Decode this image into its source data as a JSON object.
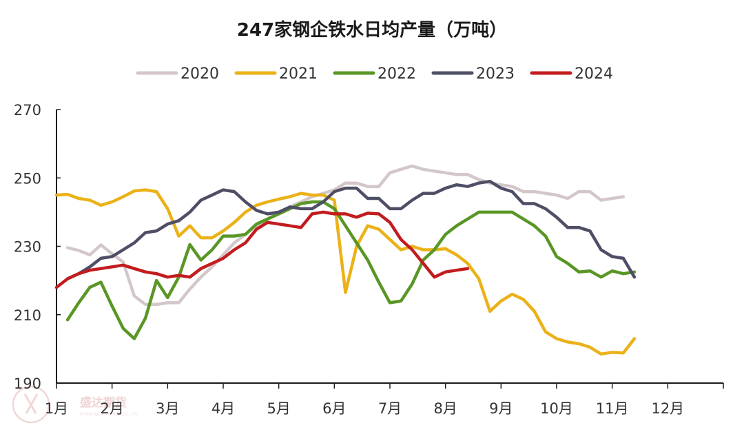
{
  "chart_data": {
    "type": "line",
    "title": "247家钢企铁水日均产量（万吨）",
    "xlabel": "",
    "ylabel": "",
    "ylim": [
      190,
      270
    ],
    "yticks": [
      190,
      210,
      230,
      250,
      270
    ],
    "x_range": [
      0,
      12
    ],
    "month_labels": [
      "1月",
      "2月",
      "3月",
      "4月",
      "5月",
      "6月",
      "7月",
      "8月",
      "9月",
      "10月",
      "11月",
      "12月"
    ],
    "legend_position": "top",
    "grid": false,
    "series": [
      {
        "name": "2020",
        "color": "#d3c7c9",
        "points": [
          [
            0.2,
            229.6
          ],
          [
            0.4,
            228.8
          ],
          [
            0.6,
            227.5
          ],
          [
            0.8,
            230.4
          ],
          [
            1.0,
            227.8
          ],
          [
            1.2,
            225.4
          ],
          [
            1.4,
            215.5
          ],
          [
            1.6,
            213.0
          ],
          [
            1.8,
            213.0
          ],
          [
            2.0,
            213.5
          ],
          [
            2.2,
            213.5
          ],
          [
            2.4,
            217.5
          ],
          [
            2.6,
            221.0
          ],
          [
            2.8,
            224.0
          ],
          [
            3.0,
            227.5
          ],
          [
            3.2,
            231.0
          ],
          [
            3.4,
            233.5
          ],
          [
            3.6,
            236.0
          ],
          [
            3.8,
            238.0
          ],
          [
            4.0,
            240.0
          ],
          [
            4.2,
            241.5
          ],
          [
            4.4,
            243.0
          ],
          [
            4.6,
            244.5
          ],
          [
            4.8,
            245.5
          ],
          [
            5.0,
            246.5
          ],
          [
            5.2,
            248.5
          ],
          [
            5.4,
            248.5
          ],
          [
            5.6,
            247.5
          ],
          [
            5.8,
            247.5
          ],
          [
            6.0,
            251.5
          ],
          [
            6.2,
            252.5
          ],
          [
            6.4,
            253.5
          ],
          [
            6.6,
            252.5
          ],
          [
            6.8,
            252.0
          ],
          [
            7.0,
            251.5
          ],
          [
            7.2,
            251.0
          ],
          [
            7.4,
            251.0
          ],
          [
            7.6,
            249.5
          ],
          [
            7.8,
            248.5
          ],
          [
            8.0,
            248.0
          ],
          [
            8.2,
            247.5
          ],
          [
            8.4,
            246.0
          ],
          [
            8.6,
            246.0
          ],
          [
            8.8,
            245.5
          ],
          [
            9.0,
            245.0
          ],
          [
            9.2,
            244.0
          ],
          [
            9.4,
            246.0
          ],
          [
            9.6,
            246.0
          ],
          [
            9.8,
            243.5
          ],
          [
            10.0,
            244.0
          ],
          [
            10.2,
            244.5
          ]
        ]
      },
      {
        "name": "2021",
        "color": "#ebb218",
        "points": [
          [
            0.0,
            245.0
          ],
          [
            0.2,
            245.2
          ],
          [
            0.4,
            244.0
          ],
          [
            0.6,
            243.5
          ],
          [
            0.8,
            242.0
          ],
          [
            1.0,
            243.0
          ],
          [
            1.2,
            244.5
          ],
          [
            1.4,
            246.2
          ],
          [
            1.6,
            246.5
          ],
          [
            1.8,
            246.0
          ],
          [
            2.0,
            241.0
          ],
          [
            2.2,
            233.0
          ],
          [
            2.4,
            236.0
          ],
          [
            2.6,
            232.5
          ],
          [
            2.8,
            232.5
          ],
          [
            3.0,
            234.5
          ],
          [
            3.2,
            237.0
          ],
          [
            3.4,
            240.0
          ],
          [
            3.6,
            242.0
          ],
          [
            3.8,
            243.0
          ],
          [
            4.0,
            243.8
          ],
          [
            4.2,
            244.5
          ],
          [
            4.4,
            245.5
          ],
          [
            4.6,
            245.0
          ],
          [
            4.8,
            245.0
          ],
          [
            5.0,
            243.5
          ],
          [
            5.2,
            216.5
          ],
          [
            5.4,
            230.0
          ],
          [
            5.6,
            236.0
          ],
          [
            5.8,
            235.0
          ],
          [
            6.0,
            232.0
          ],
          [
            6.2,
            229.0
          ],
          [
            6.4,
            230.0
          ],
          [
            6.6,
            229.0
          ],
          [
            6.8,
            229.0
          ],
          [
            7.0,
            229.3
          ],
          [
            7.2,
            227.5
          ],
          [
            7.4,
            225.0
          ],
          [
            7.6,
            220.5
          ],
          [
            7.8,
            211.0
          ],
          [
            8.0,
            214.0
          ],
          [
            8.2,
            216.0
          ],
          [
            8.4,
            214.5
          ],
          [
            8.6,
            211.0
          ],
          [
            8.8,
            205.0
          ],
          [
            9.0,
            203.0
          ],
          [
            9.2,
            202.0
          ],
          [
            9.4,
            201.5
          ],
          [
            9.6,
            200.5
          ],
          [
            9.8,
            198.5
          ],
          [
            10.0,
            199.0
          ],
          [
            10.2,
            198.8
          ],
          [
            10.4,
            203.0
          ]
        ]
      },
      {
        "name": "2022",
        "color": "#5a9625",
        "points": [
          [
            0.2,
            208.5
          ],
          [
            0.4,
            213.5
          ],
          [
            0.6,
            218.0
          ],
          [
            0.8,
            219.5
          ],
          [
            1.0,
            212.5
          ],
          [
            1.2,
            206.0
          ],
          [
            1.4,
            203.0
          ],
          [
            1.6,
            209.0
          ],
          [
            1.8,
            220.0
          ],
          [
            2.0,
            215.0
          ],
          [
            2.2,
            221.0
          ],
          [
            2.4,
            230.5
          ],
          [
            2.6,
            226.0
          ],
          [
            2.8,
            229.0
          ],
          [
            3.0,
            233.0
          ],
          [
            3.2,
            233.0
          ],
          [
            3.4,
            233.5
          ],
          [
            3.6,
            236.5
          ],
          [
            3.8,
            238.0
          ],
          [
            4.0,
            239.5
          ],
          [
            4.2,
            241.0
          ],
          [
            4.4,
            242.5
          ],
          [
            4.6,
            243.0
          ],
          [
            4.8,
            243.0
          ],
          [
            5.0,
            241.0
          ],
          [
            5.2,
            236.0
          ],
          [
            5.4,
            231.0
          ],
          [
            5.6,
            226.0
          ],
          [
            5.8,
            219.5
          ],
          [
            6.0,
            213.5
          ],
          [
            6.2,
            214.0
          ],
          [
            6.4,
            219.0
          ],
          [
            6.6,
            226.0
          ],
          [
            6.8,
            229.0
          ],
          [
            7.0,
            233.5
          ],
          [
            7.2,
            236.0
          ],
          [
            7.4,
            238.0
          ],
          [
            7.6,
            240.0
          ],
          [
            7.8,
            240.0
          ],
          [
            8.0,
            240.0
          ],
          [
            8.2,
            240.0
          ],
          [
            8.4,
            238.0
          ],
          [
            8.6,
            236.0
          ],
          [
            8.8,
            233.0
          ],
          [
            9.0,
            227.0
          ],
          [
            9.2,
            225.0
          ],
          [
            9.4,
            222.5
          ],
          [
            9.6,
            222.8
          ],
          [
            9.8,
            221.0
          ],
          [
            10.0,
            222.8
          ],
          [
            10.2,
            222.0
          ],
          [
            10.4,
            222.5
          ]
        ]
      },
      {
        "name": "2023",
        "color": "#4e4e66",
        "points": [
          [
            0.2,
            220.5
          ],
          [
            0.4,
            222.0
          ],
          [
            0.6,
            224.0
          ],
          [
            0.8,
            226.5
          ],
          [
            1.0,
            227.0
          ],
          [
            1.2,
            229.0
          ],
          [
            1.4,
            231.0
          ],
          [
            1.6,
            234.0
          ],
          [
            1.8,
            234.5
          ],
          [
            2.0,
            236.5
          ],
          [
            2.2,
            237.5
          ],
          [
            2.4,
            240.0
          ],
          [
            2.6,
            243.5
          ],
          [
            2.8,
            245.0
          ],
          [
            3.0,
            246.5
          ],
          [
            3.2,
            246.0
          ],
          [
            3.4,
            243.0
          ],
          [
            3.6,
            240.5
          ],
          [
            3.8,
            239.5
          ],
          [
            4.0,
            240.0
          ],
          [
            4.2,
            241.5
          ],
          [
            4.4,
            241.0
          ],
          [
            4.6,
            241.0
          ],
          [
            4.8,
            243.0
          ],
          [
            5.0,
            246.0
          ],
          [
            5.2,
            247.0
          ],
          [
            5.4,
            247.0
          ],
          [
            5.6,
            244.0
          ],
          [
            5.8,
            244.0
          ],
          [
            6.0,
            241.0
          ],
          [
            6.2,
            241.0
          ],
          [
            6.4,
            243.5
          ],
          [
            6.6,
            245.5
          ],
          [
            6.8,
            245.5
          ],
          [
            7.0,
            247.0
          ],
          [
            7.2,
            248.0
          ],
          [
            7.4,
            247.5
          ],
          [
            7.6,
            248.5
          ],
          [
            7.8,
            249.0
          ],
          [
            8.0,
            247.0
          ],
          [
            8.2,
            246.0
          ],
          [
            8.4,
            242.5
          ],
          [
            8.6,
            242.5
          ],
          [
            8.8,
            241.0
          ],
          [
            9.0,
            238.5
          ],
          [
            9.2,
            235.5
          ],
          [
            9.4,
            235.5
          ],
          [
            9.6,
            234.5
          ],
          [
            9.8,
            229.0
          ],
          [
            10.0,
            227.0
          ],
          [
            10.2,
            226.5
          ],
          [
            10.4,
            221.0
          ]
        ]
      },
      {
        "name": "2024",
        "color": "#c21c1f",
        "points": [
          [
            0.0,
            218.0
          ],
          [
            0.2,
            220.5
          ],
          [
            0.4,
            222.0
          ],
          [
            0.6,
            223.0
          ],
          [
            0.8,
            223.5
          ],
          [
            1.0,
            224.0
          ],
          [
            1.2,
            224.5
          ],
          [
            1.4,
            223.5
          ],
          [
            1.6,
            222.5
          ],
          [
            1.8,
            222.0
          ],
          [
            2.0,
            221.0
          ],
          [
            2.2,
            221.5
          ],
          [
            2.4,
            221.0
          ],
          [
            2.6,
            223.5
          ],
          [
            2.8,
            225.0
          ],
          [
            3.0,
            226.5
          ],
          [
            3.2,
            229.0
          ],
          [
            3.4,
            231.0
          ],
          [
            3.6,
            235.0
          ],
          [
            3.8,
            237.0
          ],
          [
            4.0,
            236.5
          ],
          [
            4.2,
            236.0
          ],
          [
            4.4,
            235.5
          ],
          [
            4.6,
            239.5
          ],
          [
            4.8,
            240.0
          ],
          [
            5.0,
            239.5
          ],
          [
            5.2,
            239.5
          ],
          [
            5.4,
            238.5
          ],
          [
            5.6,
            239.7
          ],
          [
            5.8,
            239.5
          ],
          [
            6.0,
            237.0
          ],
          [
            6.2,
            232.0
          ],
          [
            6.4,
            229.0
          ],
          [
            6.6,
            225.0
          ],
          [
            6.8,
            221.0
          ],
          [
            7.0,
            222.5
          ],
          [
            7.2,
            223.0
          ],
          [
            7.4,
            223.5
          ]
        ]
      }
    ]
  },
  "watermark": {
    "text": "盛达期货",
    "subtext": "SHENGDA FUTURES CO.,LTD."
  }
}
